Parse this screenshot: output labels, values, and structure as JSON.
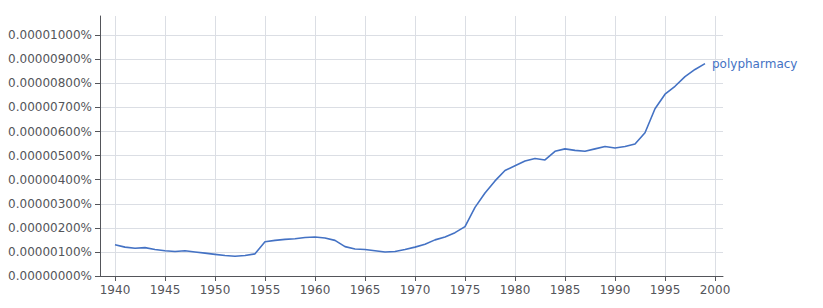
{
  "chart_data": {
    "type": "line",
    "color": "#4472c4",
    "x": [
      1940,
      1941,
      1942,
      1943,
      1944,
      1945,
      1946,
      1947,
      1948,
      1949,
      1950,
      1951,
      1952,
      1953,
      1954,
      1955,
      1956,
      1957,
      1958,
      1959,
      1960,
      1961,
      1962,
      1963,
      1964,
      1965,
      1966,
      1967,
      1968,
      1969,
      1970,
      1971,
      1972,
      1973,
      1974,
      1975,
      1976,
      1977,
      1978,
      1979,
      1980,
      1981,
      1982,
      1983,
      1984,
      1985,
      1986,
      1987,
      1988,
      1989,
      1990,
      1991,
      1992,
      1993,
      1994,
      1995,
      1996,
      1997,
      1998,
      1999
    ],
    "values": [
      1.3e-08,
      1.2e-08,
      1.15e-08,
      1.18e-08,
      1.1e-08,
      1.05e-08,
      1.02e-08,
      1.05e-08,
      1e-08,
      9.5e-09,
      9e-09,
      8.5e-09,
      8.2e-09,
      8.5e-09,
      9.2e-09,
      1.42e-08,
      1.48e-08,
      1.52e-08,
      1.55e-08,
      1.6e-08,
      1.62e-08,
      1.58e-08,
      1.48e-08,
      1.22e-08,
      1.12e-08,
      1.1e-08,
      1.05e-08,
      1e-08,
      1.02e-08,
      1.1e-08,
      1.2e-08,
      1.32e-08,
      1.5e-08,
      1.62e-08,
      1.8e-08,
      2.05e-08,
      2.85e-08,
      3.45e-08,
      3.95e-08,
      4.38e-08,
      4.58e-08,
      4.78e-08,
      4.88e-08,
      4.82e-08,
      5.18e-08,
      5.28e-08,
      5.22e-08,
      5.18e-08,
      5.28e-08,
      5.38e-08,
      5.32e-08,
      5.38e-08,
      5.48e-08,
      5.95e-08,
      6.95e-08,
      7.55e-08,
      7.88e-08,
      8.28e-08,
      8.58e-08,
      8.82e-08
    ],
    "xlim": [
      1938.5,
      2000.8
    ],
    "xticks": [
      1940,
      1945,
      1950,
      1955,
      1960,
      1965,
      1970,
      1975,
      1980,
      1985,
      1990,
      1995,
      2000
    ],
    "ylim": [
      0,
      1.08e-07
    ],
    "yticks": [
      {
        "value": 0,
        "label": "0.00000000%"
      },
      {
        "value": 1e-08,
        "label": "0.00000100%"
      },
      {
        "value": 2e-08,
        "label": "0.00000200%"
      },
      {
        "value": 3e-08,
        "label": "0.00000300%"
      },
      {
        "value": 4e-08,
        "label": "0.00000400%"
      },
      {
        "value": 5e-08,
        "label": "0.00000500%"
      },
      {
        "value": 6e-08,
        "label": "0.00000600%"
      },
      {
        "value": 7e-08,
        "label": "0.00000700%"
      },
      {
        "value": 8e-08,
        "label": "0.00000800%"
      },
      {
        "value": 9e-08,
        "label": "0.00000900%"
      },
      {
        "value": 1e-07,
        "label": "0.00001000%"
      }
    ],
    "grid": true,
    "annotations": [
      {
        "text": "polypharmacy",
        "x": 1999.2,
        "y": 8.82e-08
      }
    ]
  }
}
